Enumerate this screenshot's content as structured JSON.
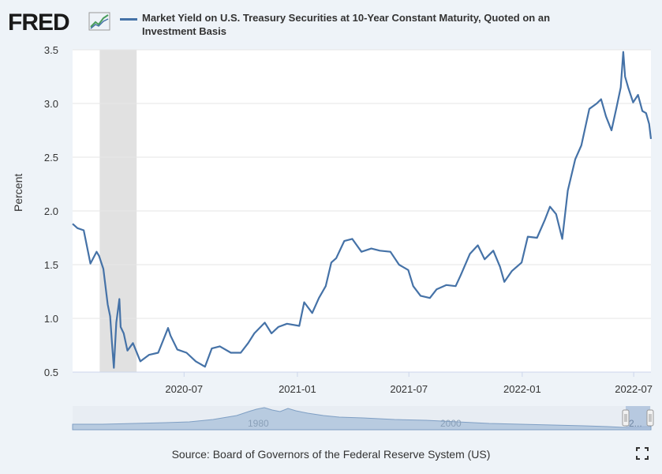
{
  "header": {
    "logo_text": "FRED",
    "logo_icon": "fred-graph-icon",
    "series_title": "Market Yield on U.S. Treasury Securities at 10-Year Constant Maturity, Quoted on an Investment Basis"
  },
  "navigator": {
    "labels": [
      "1980",
      "2000",
      "2..."
    ]
  },
  "footer": {
    "source": "Source: Board of Governors of the Federal Reserve System (US)",
    "fullscreen_icon": "fullscreen-icon"
  },
  "colors": {
    "line": "#4572a7",
    "recession": "#e1e1e1",
    "plot_bg": "#ffffff",
    "page_bg": "#eef3f8"
  },
  "chart_data": {
    "type": "line",
    "title": "Market Yield on U.S. Treasury Securities at 10-Year Constant Maturity, Quoted on an Investment Basis",
    "xlabel": "",
    "ylabel": "Percent",
    "ylim": [
      0.5,
      3.5
    ],
    "yticks": [
      0.5,
      1.0,
      1.5,
      2.0,
      2.5,
      3.0,
      3.5
    ],
    "ytick_labels": [
      "0.5",
      "1.0",
      "1.5",
      "2.0",
      "2.5",
      "3.0",
      "3.5"
    ],
    "xlim": [
      "2020-01-02",
      "2022-07-29"
    ],
    "xticks": [
      "2020-07-01",
      "2021-01-01",
      "2021-07-01",
      "2022-01-01",
      "2022-07-01"
    ],
    "xtick_labels": [
      "2020-07",
      "2021-01",
      "2021-07",
      "2022-01",
      "2022-07"
    ],
    "grid": true,
    "legend": "top",
    "recession_shading": [
      {
        "start": "2020-02-15",
        "end": "2020-04-15"
      }
    ],
    "series": [
      {
        "name": "Market Yield on U.S. Treasury Securities at 10-Year Constant Maturity, Quoted on an Investment Basis",
        "x": [
          "2020-01-02",
          "2020-01-10",
          "2020-01-20",
          "2020-01-31",
          "2020-02-10",
          "2020-02-14",
          "2020-02-21",
          "2020-02-28",
          "2020-03-03",
          "2020-03-06",
          "2020-03-09",
          "2020-03-13",
          "2020-03-18",
          "2020-03-20",
          "2020-03-25",
          "2020-03-31",
          "2020-04-09",
          "2020-04-21",
          "2020-05-05",
          "2020-05-20",
          "2020-06-05",
          "2020-06-09",
          "2020-06-20",
          "2020-07-05",
          "2020-07-20",
          "2020-08-04",
          "2020-08-15",
          "2020-08-28",
          "2020-09-15",
          "2020-10-01",
          "2020-10-13",
          "2020-10-23",
          "2020-11-09",
          "2020-11-20",
          "2020-12-01",
          "2020-12-15",
          "2021-01-04",
          "2021-01-12",
          "2021-01-25",
          "2021-02-05",
          "2021-02-16",
          "2021-02-25",
          "2021-03-05",
          "2021-03-18",
          "2021-03-31",
          "2021-04-15",
          "2021-05-01",
          "2021-05-15",
          "2021-06-01",
          "2021-06-15",
          "2021-06-30",
          "2021-07-08",
          "2021-07-20",
          "2021-08-04",
          "2021-08-15",
          "2021-08-31",
          "2021-09-15",
          "2021-09-23",
          "2021-10-08",
          "2021-10-21",
          "2021-11-01",
          "2021-11-15",
          "2021-11-26",
          "2021-12-03",
          "2021-12-15",
          "2021-12-31",
          "2022-01-10",
          "2022-01-25",
          "2022-02-07",
          "2022-02-15",
          "2022-02-25",
          "2022-03-07",
          "2022-03-16",
          "2022-03-28",
          "2022-04-07",
          "2022-04-20",
          "2022-05-02",
          "2022-05-09",
          "2022-05-17",
          "2022-05-26",
          "2022-06-03",
          "2022-06-10",
          "2022-06-14",
          "2022-06-17",
          "2022-06-22",
          "2022-06-30",
          "2022-07-08",
          "2022-07-15",
          "2022-07-21",
          "2022-07-26",
          "2022-07-29"
        ],
        "values": [
          1.88,
          1.84,
          1.82,
          1.51,
          1.62,
          1.58,
          1.46,
          1.13,
          1.02,
          0.76,
          0.54,
          0.96,
          1.18,
          0.92,
          0.86,
          0.7,
          0.77,
          0.6,
          0.66,
          0.68,
          0.91,
          0.84,
          0.71,
          0.68,
          0.6,
          0.55,
          0.72,
          0.74,
          0.68,
          0.68,
          0.77,
          0.86,
          0.96,
          0.86,
          0.92,
          0.95,
          0.93,
          1.15,
          1.05,
          1.19,
          1.3,
          1.52,
          1.56,
          1.72,
          1.74,
          1.62,
          1.65,
          1.63,
          1.62,
          1.5,
          1.45,
          1.3,
          1.21,
          1.19,
          1.27,
          1.31,
          1.3,
          1.4,
          1.6,
          1.68,
          1.55,
          1.63,
          1.48,
          1.34,
          1.44,
          1.52,
          1.76,
          1.75,
          1.92,
          2.04,
          1.97,
          1.74,
          2.19,
          2.48,
          2.61,
          2.95,
          3.0,
          3.04,
          2.88,
          2.75,
          2.96,
          3.15,
          3.48,
          3.25,
          3.15,
          3.01,
          3.08,
          2.93,
          2.91,
          2.81,
          2.67
        ]
      }
    ]
  }
}
